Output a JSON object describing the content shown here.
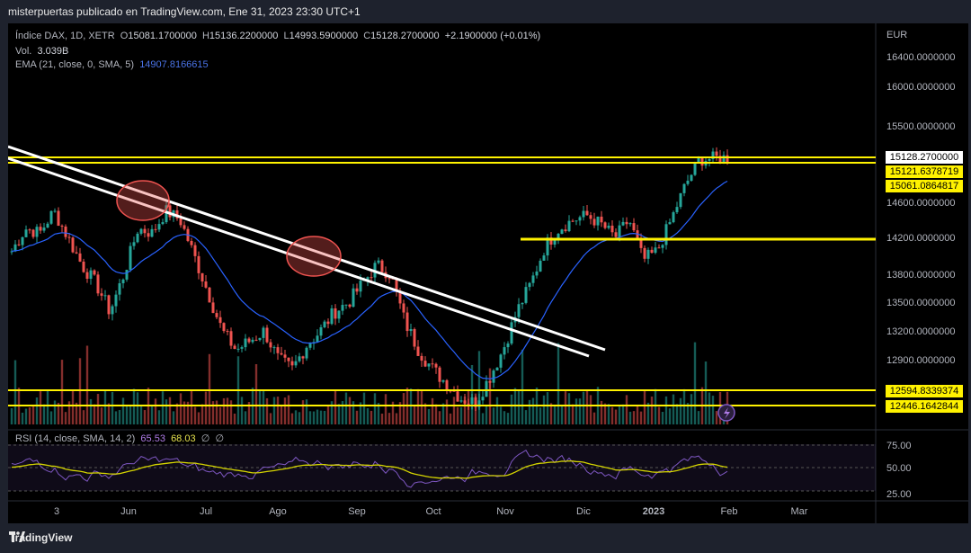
{
  "header": {
    "title": "misterpuertas publicado en TradingView.com, Ene 31, 2023 23:30 UTC+1"
  },
  "legend": {
    "symbol": "Índice DAX, 1D, XETR",
    "o_label": "O",
    "o": "15081.1700000",
    "h_label": "H",
    "h": "15136.2200000",
    "l_label": "L",
    "l": "14993.5900000",
    "c_label": "C",
    "c": "15128.2700000",
    "change": "+2.1900000 (+0.01%)",
    "vol_label": "Vol.",
    "vol": "3.039B",
    "ema_label": "EMA (21, close, 0, SMA, 5)",
    "ema": "14907.8166615",
    "rsi_label": "RSI (14, close, SMA, 14, 2)",
    "rsi": "65.53",
    "rsi_ma": "68.03",
    "rsi_z1": "∅",
    "rsi_z2": "∅"
  },
  "colors": {
    "up": "#26a69a",
    "down": "#ef5350",
    "ema": "#2962ff",
    "hline": "#fff200",
    "rsi": "#7e57c2",
    "rsi_ma": "#d4d400"
  },
  "chart_data": {
    "type": "candlestick",
    "title": "Índice DAX, 1D, XETR",
    "currency": "EUR",
    "y_ticks": [
      "16400.0000000",
      "16000.0000000",
      "15500.0000000",
      "14600.0000000",
      "14200.0000000",
      "13800.0000000",
      "13500.0000000",
      "13200.0000000",
      "12900.0000000"
    ],
    "x_ticks": [
      "3",
      "Jun",
      "Jul",
      "Ago",
      "Sep",
      "Oct",
      "Nov",
      "Dic",
      "2023",
      "Feb",
      "Mar"
    ],
    "price_labels": {
      "last": "15128.2700000",
      "l1": "15121.6378719",
      "l2": "15061.0864817",
      "l3": "12594.8339374",
      "l4": "12446.1642844"
    },
    "rsi_ticks": [
      "75.00",
      "50.00",
      "25.00"
    ],
    "series": [
      {
        "name": "Índice DAX",
        "close_approx": [
          14050,
          14300,
          14250,
          14500,
          14200,
          13900,
          13700,
          13400,
          13800,
          14300,
          14250,
          14500,
          14400,
          14000,
          13600,
          13200,
          13000,
          13100,
          13200,
          12900,
          12800,
          13050,
          13200,
          13400,
          13500,
          13700,
          13900,
          13800,
          13300,
          13000,
          12800,
          12650,
          12500,
          12450,
          12700,
          13000,
          13400,
          13700,
          14100,
          14300,
          14400,
          14450,
          14350,
          14200,
          14400,
          13950,
          14050,
          14400,
          14800,
          15100,
          15120,
          15128
        ]
      },
      {
        "name": "EMA (21, close, 0, SMA, 5)",
        "last": 14907.8166615
      }
    ]
  }
}
